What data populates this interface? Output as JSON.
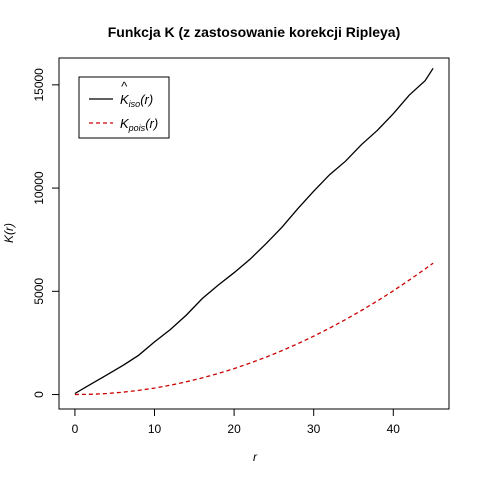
{
  "chart_data": {
    "type": "line",
    "title": "Funkcja K (z zastosowanie korekcji Ripleya)",
    "xlabel": "r",
    "ylabel": "K(r)",
    "xlim": [
      -2,
      47
    ],
    "ylim": [
      -700,
      16300
    ],
    "xticks": [
      0,
      10,
      20,
      30,
      40
    ],
    "yticks": [
      0,
      5000,
      10000,
      15000
    ],
    "xtick_labels": [
      "0",
      "10",
      "20",
      "30",
      "40"
    ],
    "ytick_labels": [
      "0",
      "5000",
      "10000",
      "15000"
    ],
    "grid": false,
    "legend_position": "top-left",
    "series": [
      {
        "name": "K̂_iso(r)",
        "name_base": "K",
        "name_hat": "^",
        "name_sub": "iso",
        "name_tail": "(r)",
        "color": "#000000",
        "dash": "solid",
        "x": [
          0,
          2,
          4,
          6,
          8,
          10,
          12,
          14,
          16,
          18,
          20,
          22,
          24,
          26,
          28,
          30,
          32,
          34,
          36,
          38,
          40,
          42,
          44,
          45
        ],
        "y": [
          50,
          500,
          950,
          1400,
          1900,
          2550,
          3150,
          3850,
          4650,
          5300,
          5900,
          6550,
          7300,
          8100,
          9000,
          9850,
          10650,
          11300,
          12100,
          12800,
          13600,
          14500,
          15200,
          15800
        ]
      },
      {
        "name": "K_pois(r)",
        "name_base": "K",
        "name_hat": "",
        "name_sub": "pois",
        "name_tail": "(r)",
        "color": "#cc0000",
        "dash": "dashed",
        "x": [
          0,
          2,
          4,
          6,
          8,
          10,
          12,
          14,
          16,
          18,
          20,
          22,
          24,
          26,
          28,
          30,
          32,
          34,
          36,
          38,
          40,
          42,
          44,
          45
        ],
        "y": [
          0,
          13,
          50,
          113,
          201,
          314,
          452,
          616,
          804,
          1018,
          1257,
          1521,
          1810,
          2124,
          2463,
          2827,
          3217,
          3632,
          4072,
          4536,
          5027,
          5542,
          6082,
          6362
        ]
      }
    ]
  }
}
